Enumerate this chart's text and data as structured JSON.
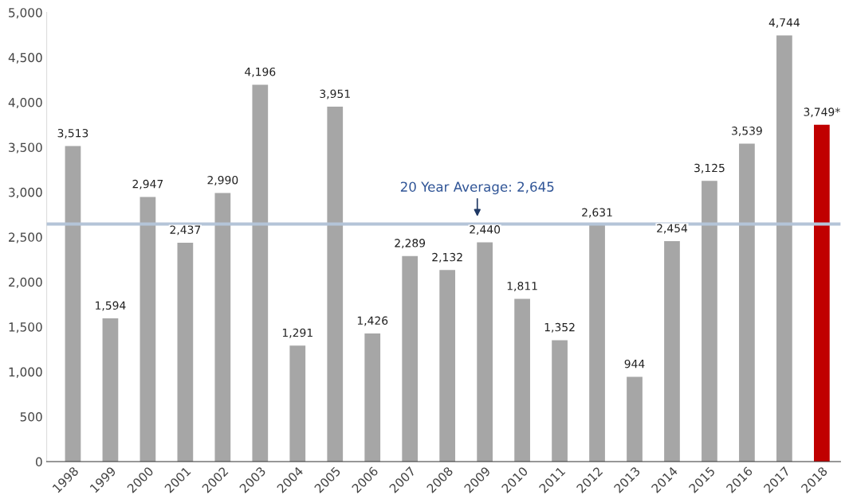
{
  "chart_data": {
    "type": "bar",
    "categories": [
      "1998",
      "1999",
      "2000",
      "2001",
      "2002",
      "2003",
      "2004",
      "2005",
      "2006",
      "2007",
      "2008",
      "2009",
      "2010",
      "2011",
      "2012",
      "2013",
      "2014",
      "2015",
      "2016",
      "2017",
      "2018"
    ],
    "values": [
      3513,
      1594,
      2947,
      2437,
      2990,
      4196,
      1291,
      3951,
      1426,
      2289,
      2132,
      2440,
      1811,
      1352,
      2631,
      944,
      2454,
      3125,
      3539,
      4744,
      3749
    ],
    "value_labels": [
      "3,513",
      "1,594",
      "2,947",
      "2,437",
      "2,990",
      "4,196",
      "1,291",
      "3,951",
      "1,426",
      "2,289",
      "2,132",
      "2,440",
      "1,811",
      "1,352",
      "2,631",
      "944",
      "2,454",
      "3,125",
      "3,539",
      "4,744",
      "3,749*"
    ],
    "colors": [
      "#a6a6a6",
      "#a6a6a6",
      "#a6a6a6",
      "#a6a6a6",
      "#a6a6a6",
      "#a6a6a6",
      "#a6a6a6",
      "#a6a6a6",
      "#a6a6a6",
      "#a6a6a6",
      "#a6a6a6",
      "#a6a6a6",
      "#a6a6a6",
      "#a6a6a6",
      "#a6a6a6",
      "#a6a6a6",
      "#a6a6a6",
      "#a6a6a6",
      "#a6a6a6",
      "#a6a6a6",
      "#c00000"
    ],
    "ylim": [
      0,
      5000
    ],
    "yticks": [
      0,
      {
        "value": 500,
        "label": "500"
      },
      {
        "value": 1000,
        "label": "1,000"
      },
      {
        "value": 1500,
        "label": "1,500"
      },
      {
        "value": 2000,
        "label": "2,000"
      },
      {
        "value": 2500,
        "label": "2,500"
      },
      {
        "value": 3000,
        "label": "3,000"
      },
      {
        "value": 3500,
        "label": "3,500"
      },
      {
        "value": 4000,
        "label": "4,000"
      },
      {
        "value": 4500,
        "label": "4,500"
      },
      {
        "value": 5000,
        "label": "5,000"
      }
    ],
    "ref_lines": [
      {
        "axis": "y",
        "value": 2645,
        "label": "20 Year Average: 2,645",
        "color": "#b4c4d8"
      }
    ],
    "grid": false,
    "legend": false
  }
}
